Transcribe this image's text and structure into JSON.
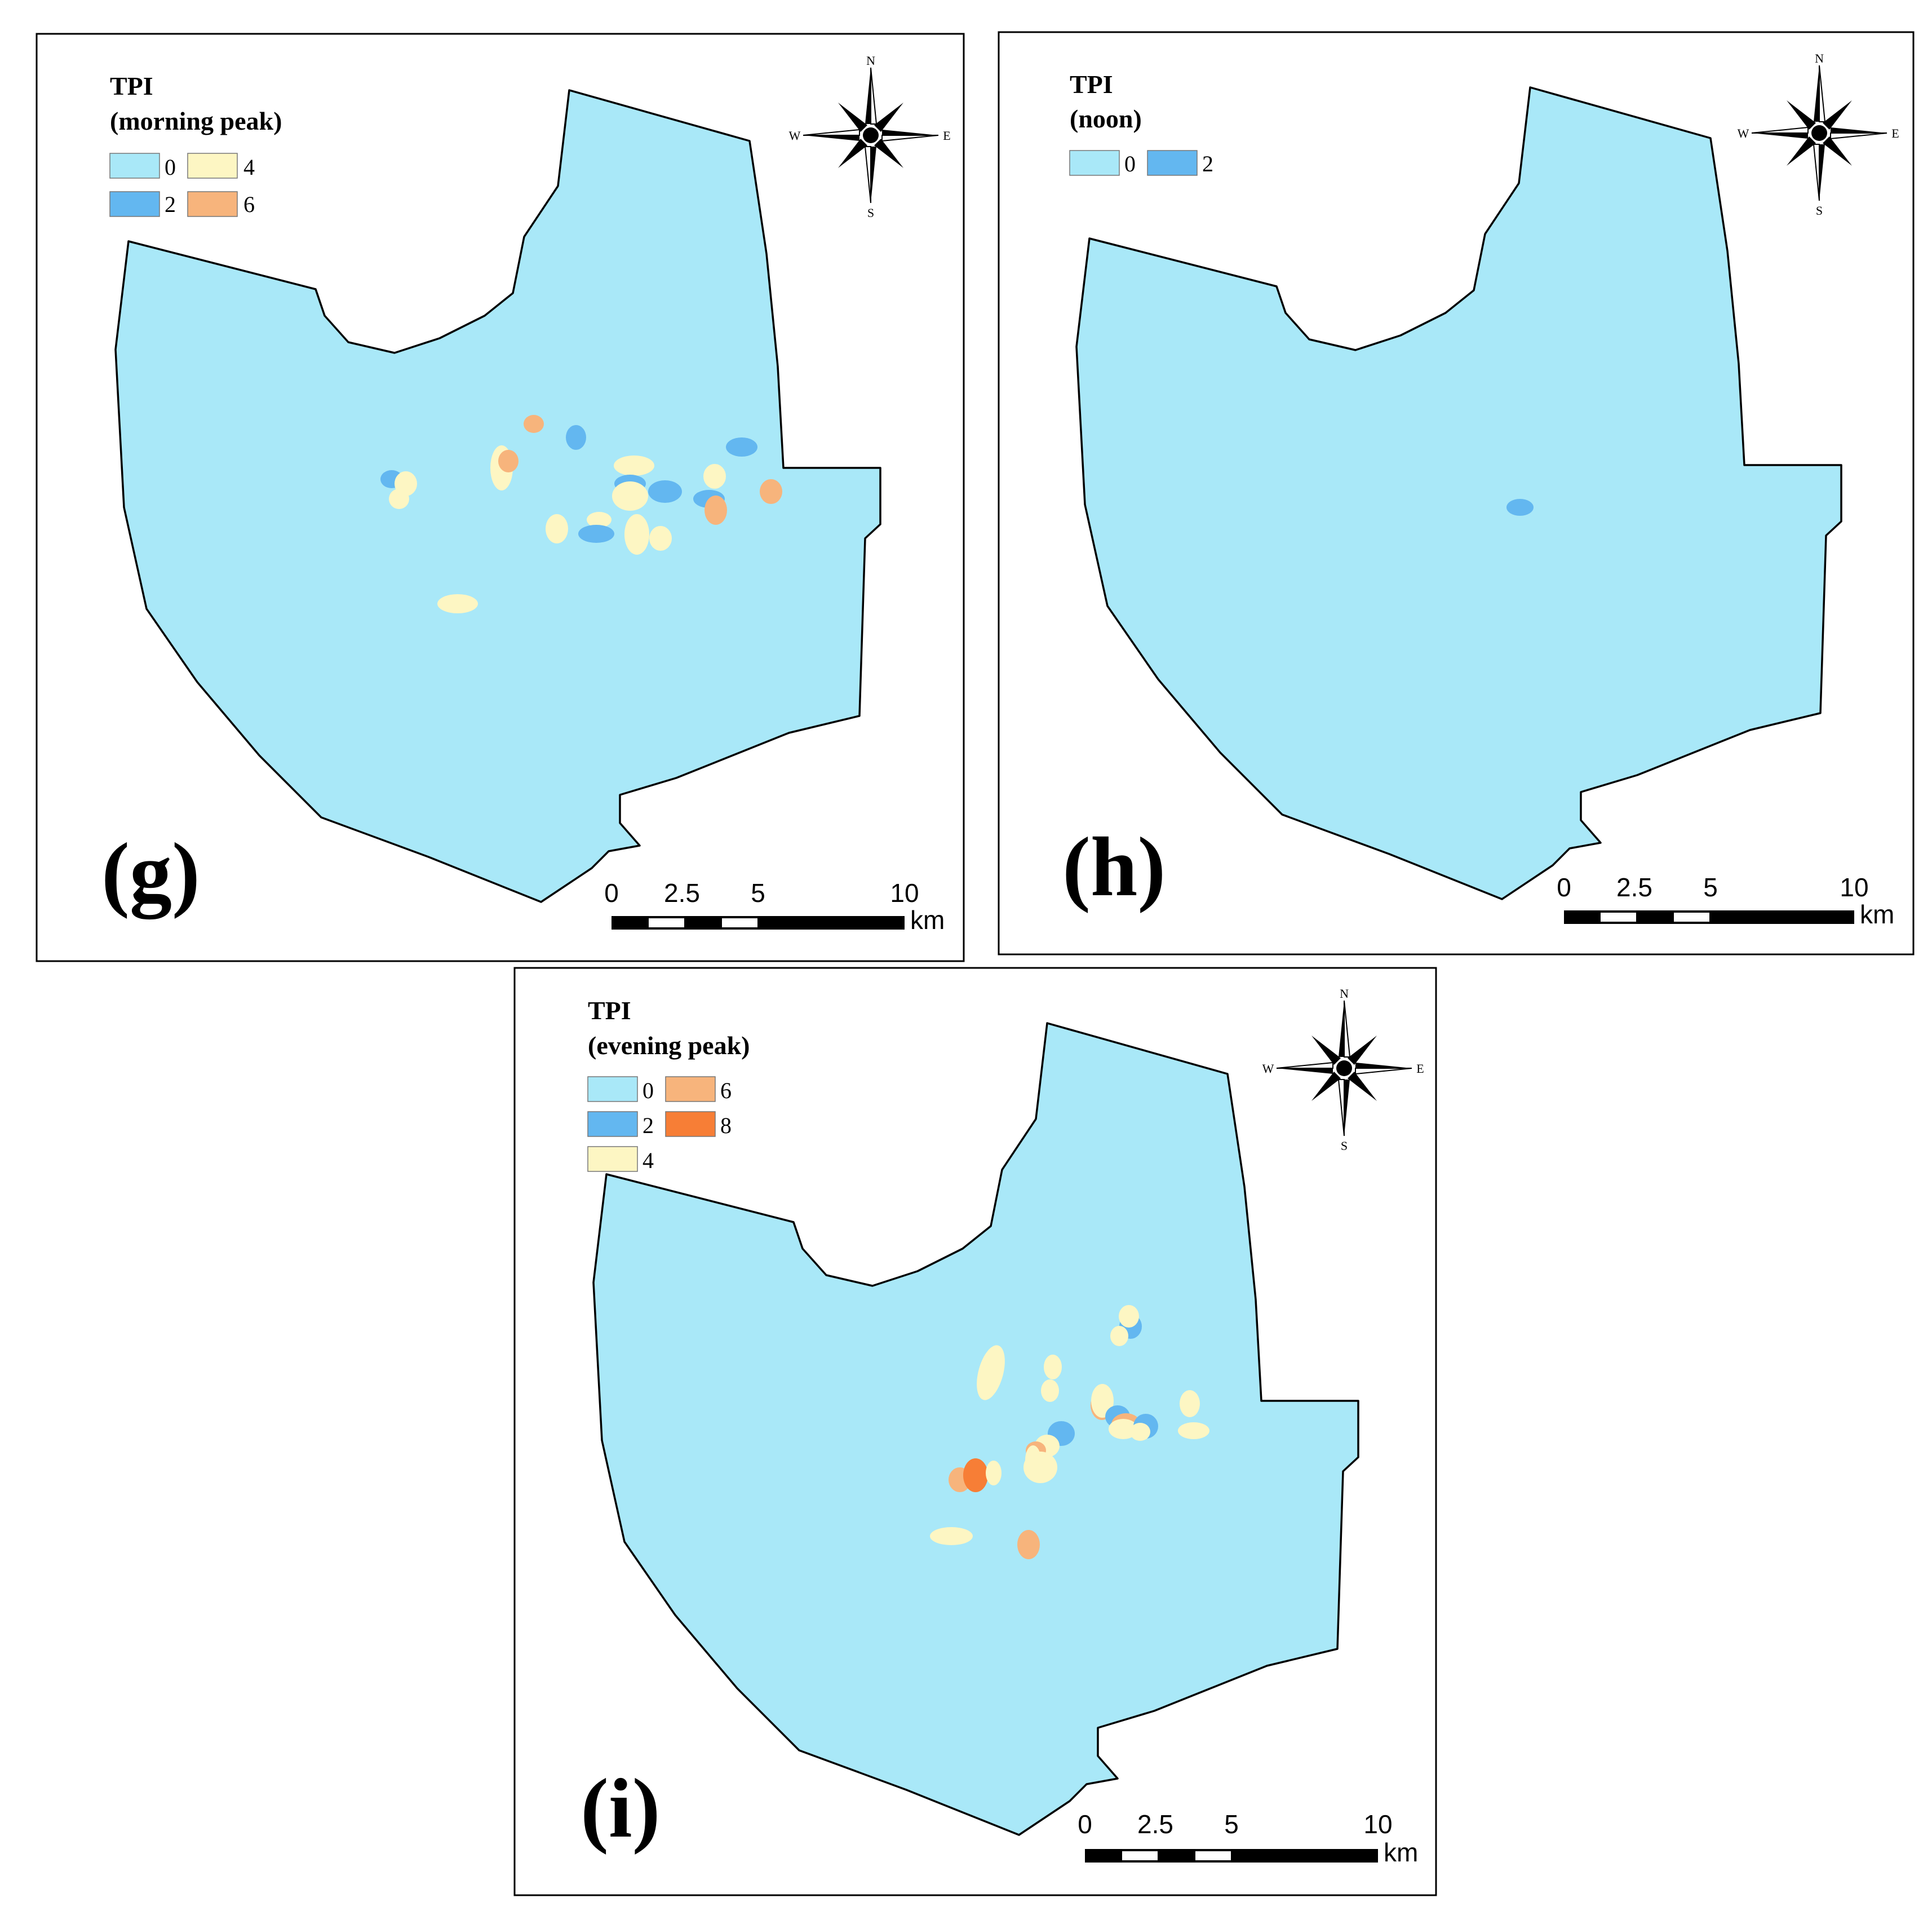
{
  "figure": {
    "panels": [
      {
        "id": "g",
        "label": "(g)",
        "legend_title_line1": "TPI",
        "legend_title_line2": "(morning peak)",
        "legend": [
          {
            "value": "0",
            "color": "#a9e8f8"
          },
          {
            "value": "4",
            "color": "#fdf6c3"
          },
          {
            "value": "2",
            "color": "#63b7f0"
          },
          {
            "value": "6",
            "color": "#f7b47c"
          }
        ],
        "compass": {
          "n": "N",
          "s": "S",
          "e": "E",
          "w": "W"
        },
        "scale": {
          "ticks": [
            "0",
            "2.5",
            "5",
            "10"
          ],
          "unit": "km"
        }
      },
      {
        "id": "h",
        "label": "(h)",
        "legend_title_line1": "TPI",
        "legend_title_line2": "(noon)",
        "legend": [
          {
            "value": "0",
            "color": "#a9e8f8"
          },
          {
            "value": "2",
            "color": "#63b7f0"
          }
        ],
        "compass": {
          "n": "N",
          "s": "S",
          "e": "E",
          "w": "W"
        },
        "scale": {
          "ticks": [
            "0",
            "2.5",
            "5",
            "10"
          ],
          "unit": "km"
        }
      },
      {
        "id": "i",
        "label": "(i)",
        "legend_title_line1": "TPI",
        "legend_title_line2": "(evening peak)",
        "legend": [
          {
            "value": "0",
            "color": "#a9e8f8"
          },
          {
            "value": "6",
            "color": "#f7b47c"
          },
          {
            "value": "2",
            "color": "#63b7f0"
          },
          {
            "value": "8",
            "color": "#f77e36"
          },
          {
            "value": "4",
            "color": "#fdf6c3"
          }
        ],
        "compass": {
          "n": "N",
          "s": "S",
          "e": "E",
          "w": "W"
        },
        "scale": {
          "ticks": [
            "0",
            "2.5",
            "5",
            "10"
          ],
          "unit": "km"
        }
      }
    ],
    "colors": {
      "tpi_0": "#a9e8f8",
      "tpi_2": "#63b7f0",
      "tpi_4": "#fdf6c3",
      "tpi_6": "#f7b47c",
      "tpi_8": "#f77e36"
    }
  }
}
